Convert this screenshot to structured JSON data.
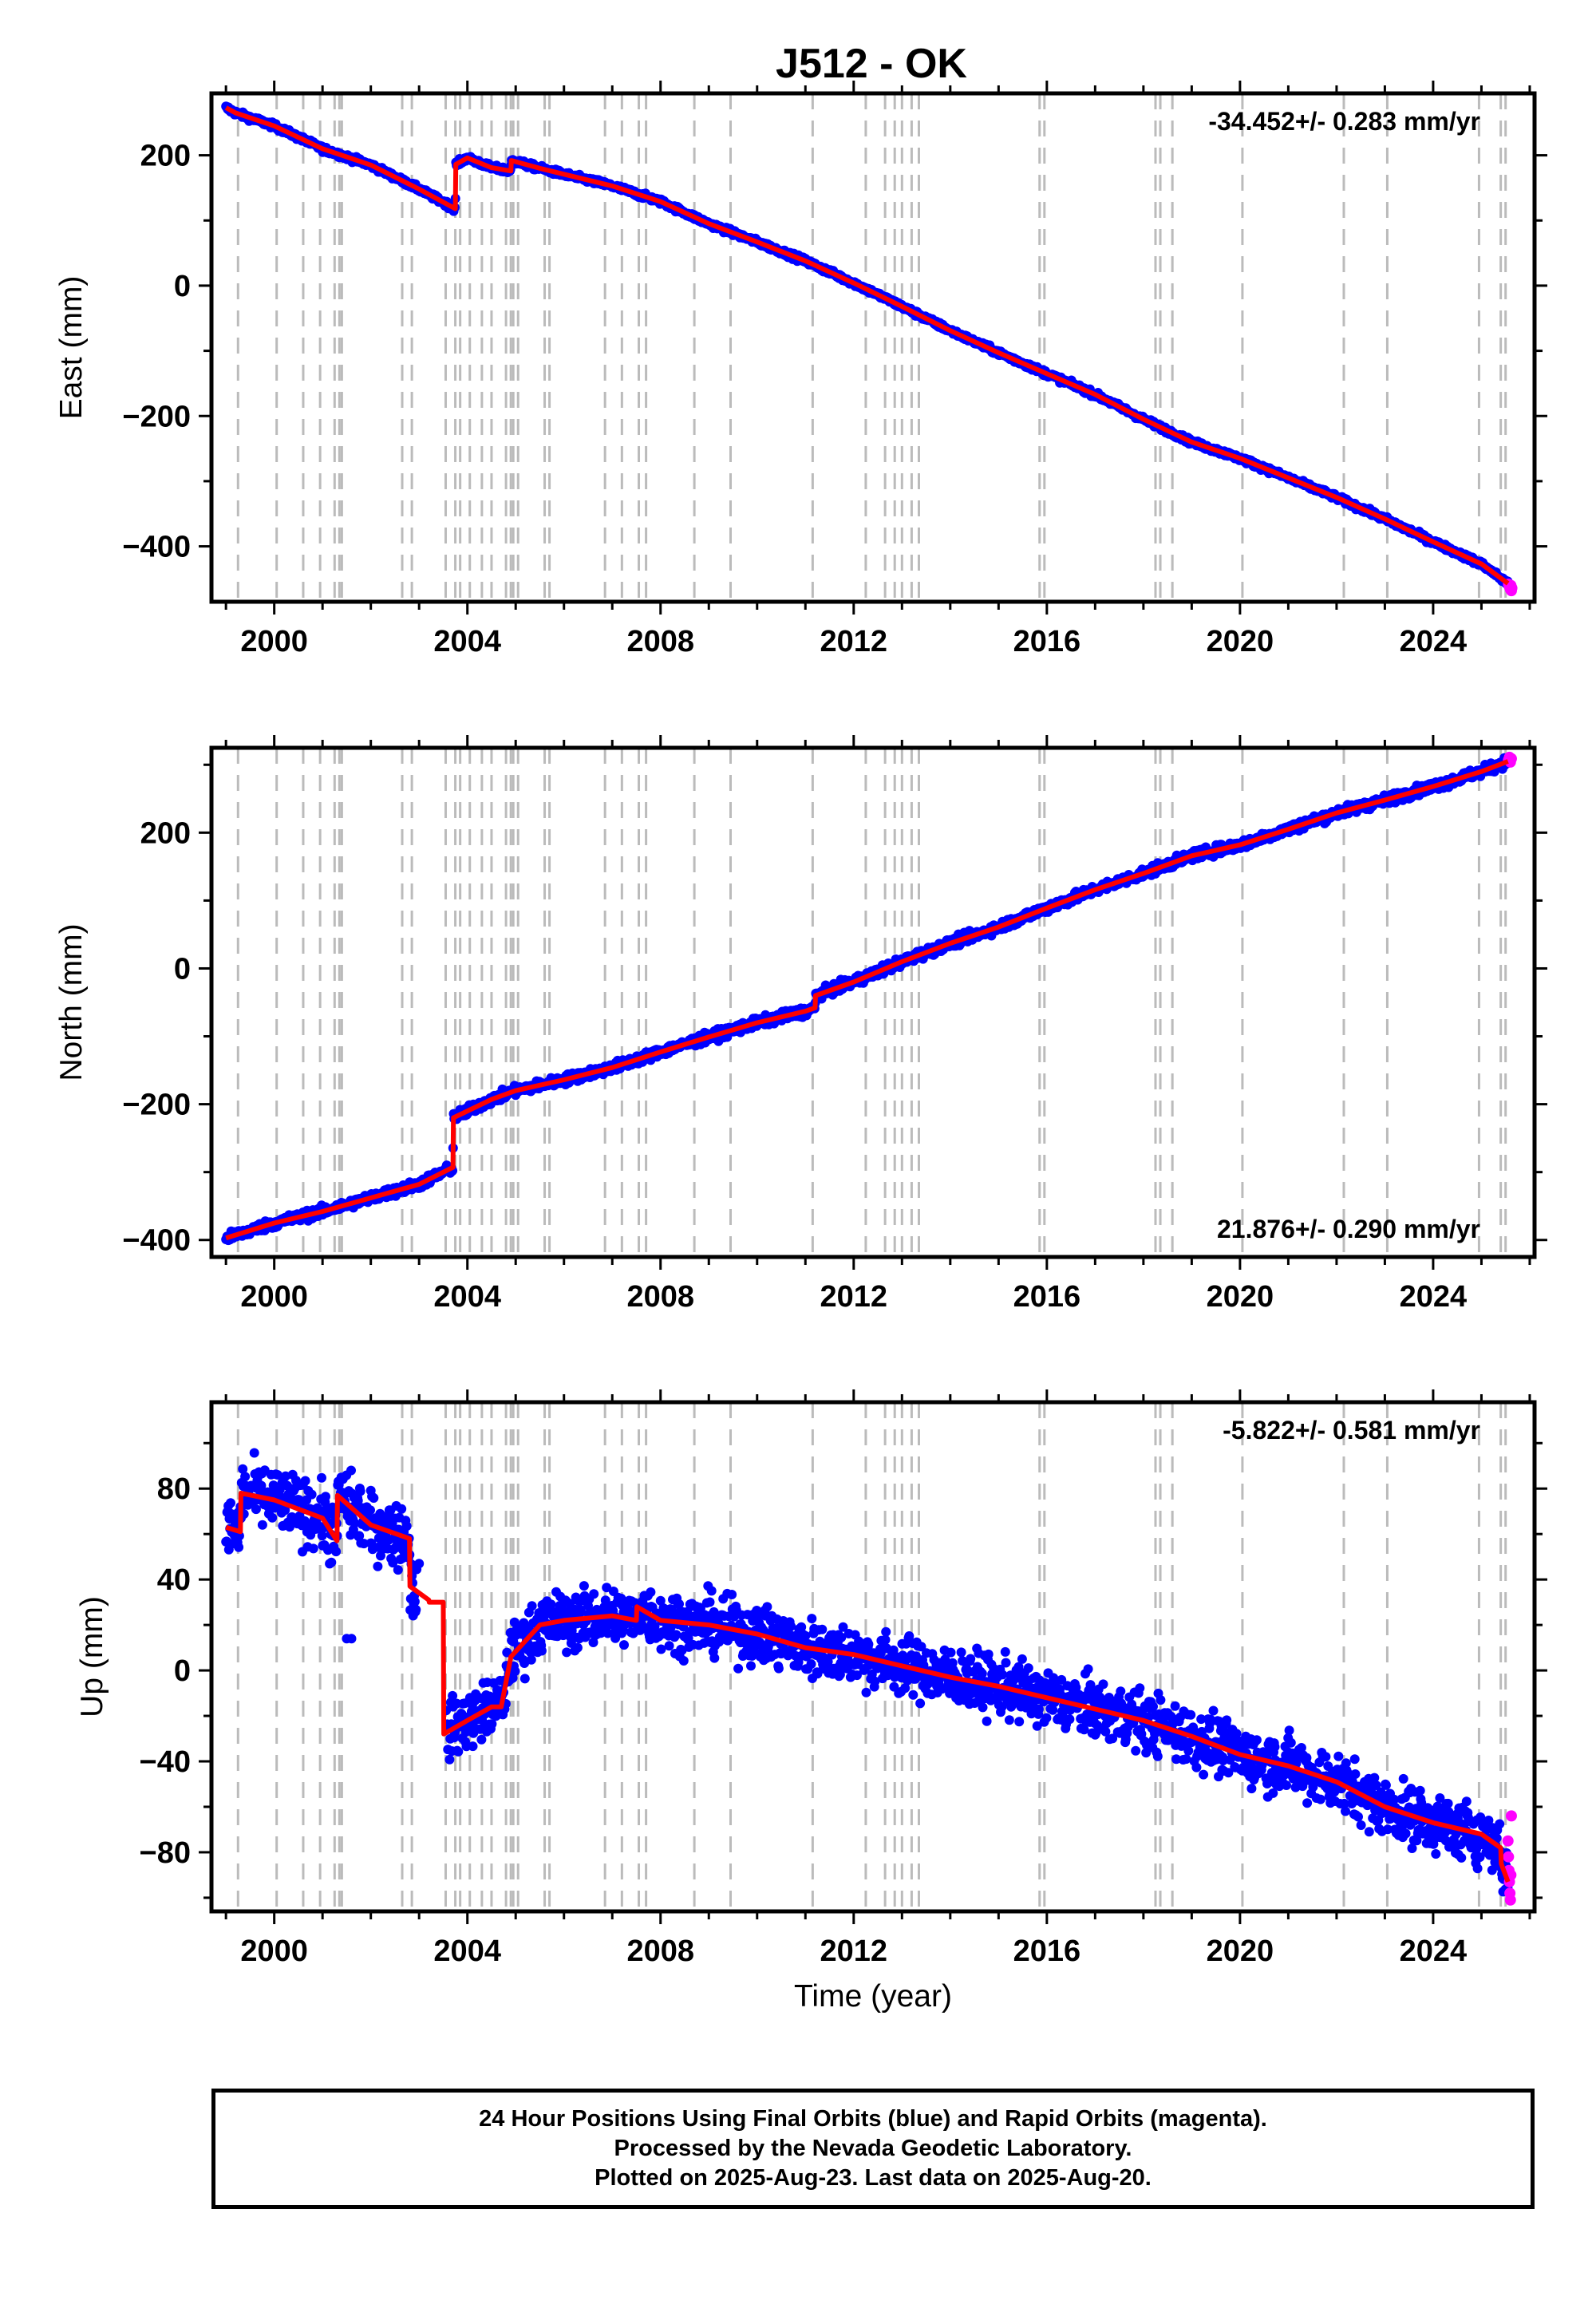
{
  "title": "J512 - OK",
  "xlabel": "Time (year)",
  "footer": {
    "line1": "24 Hour Positions Using Final Orbits (blue) and Rapid Orbits (magenta).",
    "line2": "Processed by the Nevada Geodetic Laboratory.",
    "line3": "Plotted on 2025-Aug-23. Last data on 2025-Aug-20."
  },
  "colors": {
    "final": "#0000ff",
    "rapid": "#ff00ff",
    "model": "#ff0000",
    "steps": "#bbbbbb",
    "axes": "#000000"
  },
  "chart_data": [
    {
      "type": "scatter",
      "title": "",
      "ylabel": "East (mm)",
      "rate_label": "-34.452+/- 0.283 mm/yr",
      "rate_position": "top-right",
      "xlim": [
        1998.7,
        2026.1
      ],
      "ylim": [
        -485,
        295
      ],
      "x_ticks": [
        2000,
        2004,
        2008,
        2012,
        2016,
        2020,
        2024
      ],
      "y_ticks": [
        -400,
        -200,
        0,
        200
      ],
      "scatter_spread_mm": 3,
      "model": {
        "x": [
          1999.0,
          1999.2,
          2000.0,
          2001.0,
          2002.0,
          2003.0,
          2003.75,
          2003.76,
          2004.0,
          2004.5,
          2004.9,
          2004.91,
          2005.5,
          2006.0,
          2007.0,
          2008.0,
          2009.0,
          2010.0,
          2011.0,
          2012.0,
          2013.0,
          2014.0,
          2015.0,
          2016.0,
          2017.0,
          2018.0,
          2019.0,
          2020.0,
          2021.0,
          2022.0,
          2023.0,
          2024.0,
          2025.0,
          2025.55
        ],
        "y": [
          273,
          265,
          245,
          210,
          185,
          148,
          118,
          186,
          196,
          181,
          176,
          192,
          180,
          171,
          153,
          129,
          95,
          67,
          38,
          4,
          -32,
          -69,
          -103,
          -135,
          -167,
          -205,
          -240,
          -265,
          -295,
          -325,
          -358,
          -393,
          -427,
          -457
        ]
      },
      "rapid": {
        "x": [
          2025.56,
          2025.58,
          2025.6,
          2025.61,
          2025.62,
          2025.63
        ],
        "y": [
          -458,
          -462,
          -466,
          -460,
          -468,
          -464
        ]
      }
    },
    {
      "type": "scatter",
      "title": "",
      "ylabel": "North (mm)",
      "rate_label": "21.876+/- 0.290 mm/yr",
      "rate_position": "bottom-right",
      "xlim": [
        1998.7,
        2026.1
      ],
      "ylim": [
        -425,
        325
      ],
      "x_ticks": [
        2000,
        2004,
        2008,
        2012,
        2016,
        2020,
        2024
      ],
      "y_ticks": [
        -400,
        -200,
        0,
        200
      ],
      "scatter_spread_mm": 5,
      "model": {
        "x": [
          1999.0,
          2000.0,
          2001.0,
          2002.0,
          2003.0,
          2003.7,
          2003.71,
          2004.5,
          2005.0,
          2006.0,
          2007.0,
          2008.0,
          2009.0,
          2010.0,
          2011.0,
          2011.2,
          2011.21,
          2012.0,
          2013.0,
          2014.0,
          2015.0,
          2016.0,
          2017.0,
          2018.0,
          2019.0,
          2020.0,
          2021.0,
          2022.0,
          2023.0,
          2024.0,
          2025.0,
          2025.55
        ],
        "y": [
          -397,
          -375,
          -358,
          -338,
          -318,
          -293,
          -220,
          -193,
          -180,
          -164,
          -146,
          -123,
          -101,
          -80,
          -63,
          -58,
          -40,
          -20,
          10,
          37,
          61,
          89,
          116,
          140,
          166,
          182,
          205,
          229,
          248,
          268,
          290,
          305
        ]
      },
      "rapid": {
        "x": [
          2025.56,
          2025.58,
          2025.6,
          2025.62
        ],
        "y": [
          307,
          311,
          304,
          309
        ]
      }
    },
    {
      "type": "scatter",
      "title": "",
      "ylabel": "Up (mm)",
      "rate_label": "-5.822+/- 0.581 mm/yr",
      "rate_position": "top-right",
      "xlim": [
        1998.7,
        2026.1
      ],
      "ylim": [
        -106,
        118
      ],
      "x_ticks": [
        2000,
        2004,
        2008,
        2012,
        2016,
        2020,
        2024
      ],
      "y_ticks": [
        -80,
        -40,
        0,
        40,
        80
      ],
      "scatter_spread_mm": 9,
      "model": {
        "x": [
          1999.0,
          1999.3,
          1999.31,
          2000.0,
          2001.0,
          2001.3,
          2001.31,
          2002.0,
          2002.8,
          2002.81,
          2003.2,
          2003.21,
          2003.5,
          2003.51,
          2004.0,
          2004.5,
          2004.7,
          2004.9,
          2005.5,
          2006.0,
          2007.0,
          2007.5,
          2007.51,
          2008.0,
          2009.0,
          2010.0,
          2011.0,
          2012.0,
          2013.0,
          2014.0,
          2015.0,
          2016.0,
          2017.0,
          2018.0,
          2019.0,
          2020.0,
          2021.0,
          2022.0,
          2023.0,
          2024.0,
          2025.0,
          2025.4,
          2025.41,
          2025.55
        ],
        "y": [
          63,
          61,
          78,
          75,
          67,
          57,
          77,
          64,
          58,
          37,
          31,
          30,
          30,
          -28,
          -22,
          -16,
          -16,
          6,
          20,
          22,
          24,
          22,
          28,
          22,
          20,
          16,
          10,
          7,
          2,
          -3,
          -7,
          -12,
          -17,
          -22,
          -29,
          -37,
          -42,
          -49,
          -60,
          -67,
          -72,
          -78,
          -85,
          -93
        ]
      },
      "outliers": {
        "x": [
          2001.5,
          2001.6,
          2002.0,
          2003.0
        ],
        "y": [
          14,
          14,
          56,
          47
        ]
      },
      "rapid": {
        "x": [
          2025.55,
          2025.56,
          2025.57,
          2025.58,
          2025.59,
          2025.6,
          2025.61,
          2025.62
        ],
        "y": [
          -75,
          -82,
          -88,
          -93,
          -98,
          -101,
          -90,
          -64
        ]
      }
    }
  ],
  "step_epochs": [
    1999.25,
    2000.05,
    2000.6,
    2000.95,
    2001.25,
    2001.35,
    2001.4,
    2002.65,
    2002.85,
    2003.55,
    2003.75,
    2003.85,
    2004.05,
    2004.3,
    2004.5,
    2004.8,
    2004.9,
    2004.95,
    2005.05,
    2005.6,
    2005.7,
    2006.85,
    2007.2,
    2007.55,
    2007.7,
    2008.7,
    2009.45,
    2011.15,
    2012.25,
    2012.65,
    2012.85,
    2013.0,
    2013.2,
    2013.35,
    2015.85,
    2015.95,
    2018.25,
    2018.35,
    2018.6,
    2020.05,
    2022.15,
    2023.05,
    2024.95,
    2025.4,
    2025.5
  ]
}
